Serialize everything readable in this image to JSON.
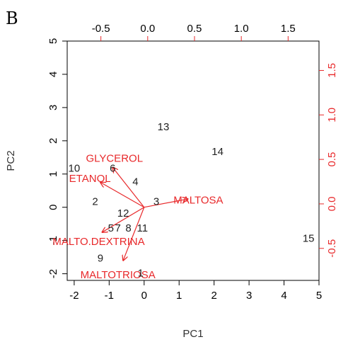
{
  "panel_label": "B",
  "colors": {
    "observations": "#222222",
    "variables": "#e8292b",
    "frame": "#000000"
  },
  "chart_data": {
    "type": "scatter",
    "subtype": "biplot",
    "title": "",
    "xlabel": "PC1",
    "ylabel": "PC2",
    "xlim": [
      -2.2,
      5.0
    ],
    "ylim": [
      -2.2,
      5.0
    ],
    "xticks": [
      -2,
      -1,
      0,
      1,
      2,
      3,
      4,
      5
    ],
    "yticks": [
      -2,
      -1,
      0,
      1,
      2,
      3,
      4,
      5
    ],
    "top_axis": {
      "lim": [
        -0.86,
        1.83
      ],
      "ticks": [
        -0.5,
        0.0,
        0.5,
        1.0,
        1.5
      ],
      "tick_labels": [
        "-0.5",
        "0.0",
        "0.5",
        "1.0",
        "1.5"
      ]
    },
    "right_axis": {
      "lim": [
        -0.86,
        1.83
      ],
      "ticks": [
        -0.5,
        0.0,
        0.5,
        1.0,
        1.5
      ],
      "tick_labels": [
        "-0.5",
        "0.0",
        "0.5",
        "1.0",
        "1.5"
      ]
    },
    "observations": [
      {
        "label": "1",
        "x": -0.1,
        "y": -2.0
      },
      {
        "label": "2",
        "x": -1.4,
        "y": 0.15
      },
      {
        "label": "3",
        "x": 0.35,
        "y": 0.15
      },
      {
        "label": "4",
        "x": -0.25,
        "y": 0.75
      },
      {
        "label": "5",
        "x": -0.95,
        "y": -0.65
      },
      {
        "label": "6",
        "x": -0.9,
        "y": 1.15
      },
      {
        "label": "7",
        "x": -0.75,
        "y": -0.65
      },
      {
        "label": "8",
        "x": -0.45,
        "y": -0.65
      },
      {
        "label": "9",
        "x": -1.25,
        "y": -1.55
      },
      {
        "label": "10",
        "x": -2.0,
        "y": 1.15
      },
      {
        "label": "11",
        "x": -0.05,
        "y": -0.65
      },
      {
        "label": "12",
        "x": -0.6,
        "y": -0.2
      },
      {
        "label": "13",
        "x": 0.55,
        "y": 2.4
      },
      {
        "label": "14",
        "x": 2.1,
        "y": 1.65
      },
      {
        "label": "15",
        "x": 4.7,
        "y": -0.95
      }
    ],
    "variables": [
      {
        "label": "GLYCEROL",
        "x": -0.9,
        "y": 1.2,
        "label_x": -0.85,
        "label_y": 1.45,
        "anchor": "middle"
      },
      {
        "label": "ETANOL",
        "x": -1.25,
        "y": 0.75,
        "label_x": -1.55,
        "label_y": 0.85,
        "anchor": "middle"
      },
      {
        "label": "MALTOSA",
        "x": 1.25,
        "y": 0.25,
        "label_x": 1.55,
        "label_y": 0.2,
        "anchor": "middle"
      },
      {
        "label": "MALTO.DEXTRINA",
        "x": -1.2,
        "y": -0.75,
        "label_x": -1.3,
        "label_y": -1.05,
        "anchor": "middle"
      },
      {
        "label": "MALTOTRIOSA",
        "x": -0.6,
        "y": -1.6,
        "label_x": -0.75,
        "label_y": -2.05,
        "anchor": "middle"
      }
    ]
  }
}
